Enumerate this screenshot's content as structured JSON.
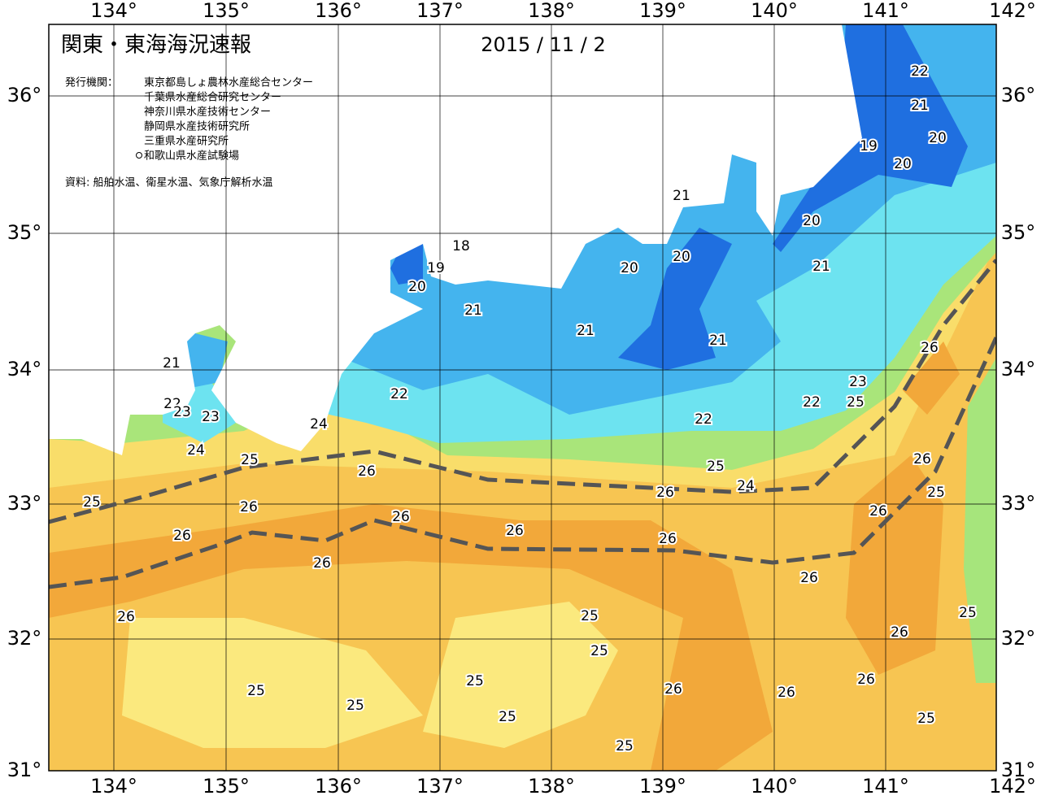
{
  "header": {
    "title": "関東・東海海況速報",
    "date": "2015 / 11 / 2",
    "publisher_label": "発行機関：",
    "publishers": [
      "東京都島しょ農林水産総合センター",
      "千葉県水産総合研究センター",
      "神奈川県水産技術センター",
      "静岡県水産技術研究所",
      "三重県水産研究所",
      "和歌山県水産試験場"
    ],
    "source": "資料: 船舶水温、衛星水温、気象庁解析水温"
  },
  "axes": {
    "lon_labels": [
      "134°",
      "135°",
      "136°",
      "137°",
      "138°",
      "139°",
      "140°",
      "141°",
      "142°"
    ],
    "lat_labels": [
      "36°",
      "35°",
      "34°",
      "33°",
      "32°",
      "31°"
    ]
  },
  "contour_labels": [
    "22",
    "21",
    "20",
    "19",
    "20",
    "21",
    "20",
    "21",
    "18",
    "19",
    "20",
    "20",
    "20",
    "21",
    "21",
    "21",
    "21",
    "26",
    "23",
    "25",
    "22",
    "22",
    "22",
    "22",
    "23",
    "23",
    "24",
    "24",
    "25",
    "25",
    "26",
    "26",
    "24",
    "25",
    "26",
    "25",
    "26",
    "26",
    "26",
    "26",
    "26",
    "26",
    "26",
    "26",
    "25",
    "25",
    "26",
    "26",
    "25",
    "25",
    "26",
    "26",
    "26",
    "25",
    "25",
    "25",
    "25",
    "25"
  ]
}
